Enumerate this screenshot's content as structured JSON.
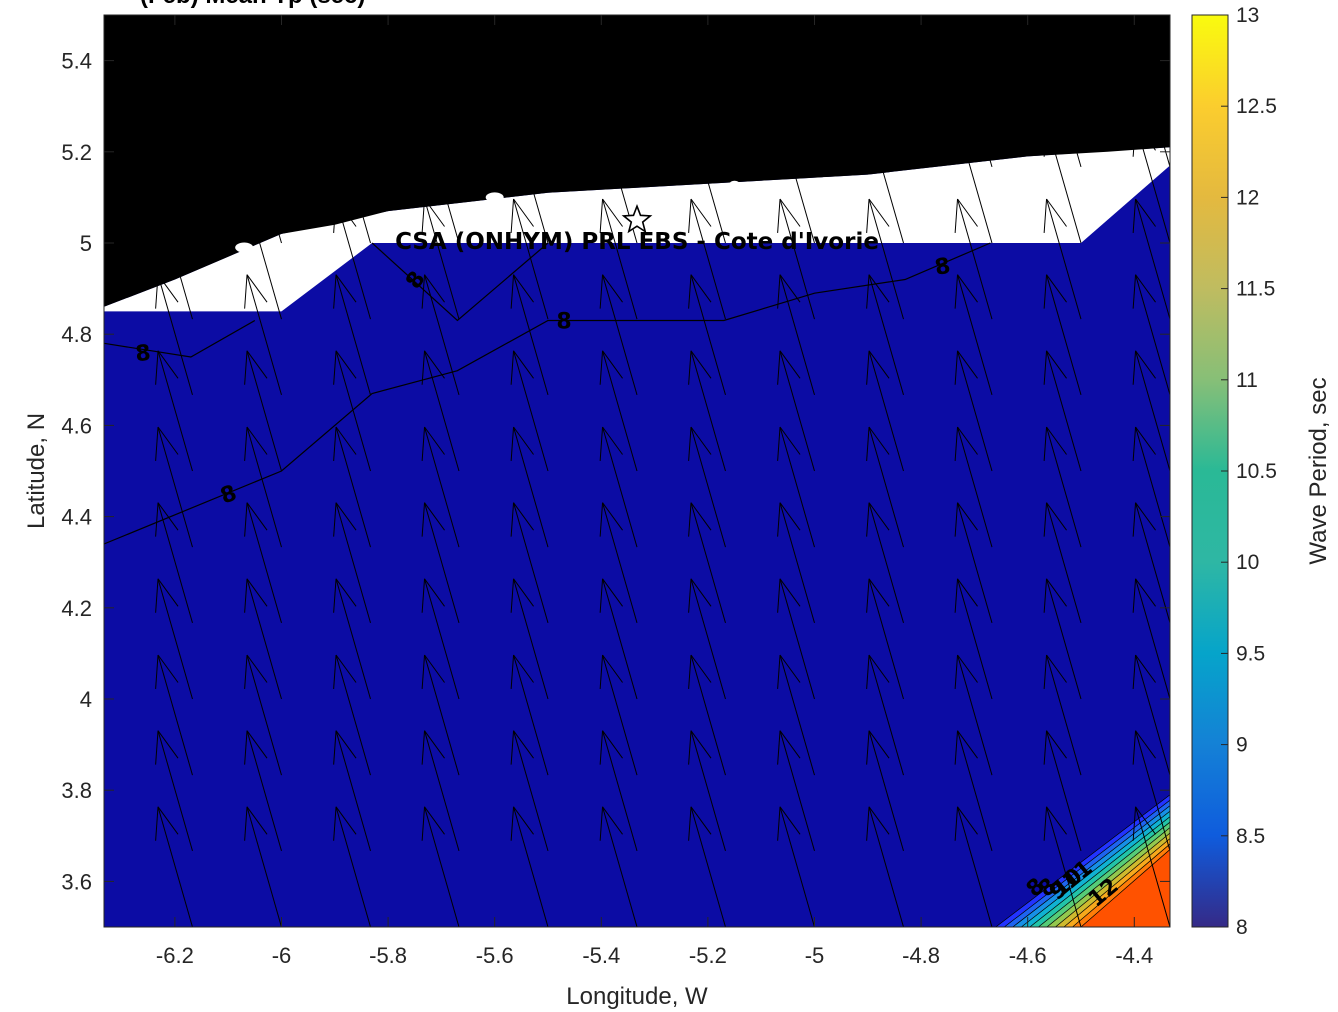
{
  "chart_data": {
    "type": "heatmap",
    "title": "(Feb) Mean Tp (sec)",
    "xlabel": "Longitude, W",
    "ylabel": "Latitude, N",
    "xlim": [
      -6.333,
      -4.333
    ],
    "ylim": [
      3.5,
      5.5
    ],
    "xticks": [
      -6.2,
      -6,
      -5.8,
      -5.6,
      -5.4,
      -5.2,
      -5,
      -4.8,
      -4.6,
      -4.4
    ],
    "xtick_labels": [
      "-6.2",
      "-6",
      "-5.8",
      "-5.6",
      "-5.4",
      "-5.2",
      "-5",
      "-4.8",
      "-4.6",
      "-4.4"
    ],
    "yticks": [
      3.6,
      3.8,
      4,
      4.2,
      4.4,
      4.6,
      4.8,
      5,
      5.2,
      5.4
    ],
    "ytick_labels": [
      "3.6",
      "3.8",
      "4",
      "4.2",
      "4.4",
      "4.6",
      "4.8",
      "5",
      "5.2",
      "5.4"
    ],
    "colorbar": {
      "label": "Wave Period, sec",
      "min": 8,
      "max": 13,
      "ticks": [
        8,
        8.5,
        9,
        9.5,
        10,
        10.5,
        11,
        11.5,
        12,
        12.5,
        13
      ],
      "tick_labels": [
        "8",
        "8.5",
        "9",
        "9.5",
        "10",
        "10.5",
        "11",
        "11.5",
        "12",
        "12.5",
        "13"
      ],
      "colormap": "parula"
    },
    "field": {
      "dominant_value": 8,
      "dominant_color": "#0c0ca4",
      "high_corner_value": 12.4,
      "high_corner_color": "#ff5200",
      "corner_band_colors": [
        "#2233ff",
        "#1e64f0",
        "#1790e6",
        "#10b2d2",
        "#22c4a8",
        "#56cc78",
        "#94c84e",
        "#cfba2e",
        "#f7a91c",
        "#ff7d08"
      ]
    },
    "land_color": "#000000",
    "no_data_color": "#ffffff",
    "contours": [
      {
        "level": 8,
        "points": [
          [
            -6.333,
            4.78
          ],
          [
            -6.17,
            4.75
          ],
          [
            -6.05,
            4.83
          ]
        ]
      },
      {
        "level": 8,
        "points": [
          [
            -6.333,
            4.34
          ],
          [
            -6.0,
            4.5
          ],
          [
            -5.83,
            4.67
          ],
          [
            -5.67,
            4.72
          ],
          [
            -5.5,
            4.83
          ],
          [
            -5.17,
            4.83
          ],
          [
            -5.0,
            4.89
          ],
          [
            -4.83,
            4.92
          ],
          [
            -4.67,
            5.0
          ]
        ]
      },
      {
        "level": 8,
        "points": [
          [
            -5.83,
            5.0
          ],
          [
            -5.67,
            4.83
          ],
          [
            -5.5,
            5.0
          ]
        ]
      }
    ],
    "contour_labels": [
      {
        "text": "8",
        "x": -6.26,
        "y": 4.76,
        "rotate": -5
      },
      {
        "text": "8",
        "x": -6.1,
        "y": 4.45,
        "rotate": -20
      },
      {
        "text": "8",
        "x": -5.75,
        "y": 4.92,
        "rotate": -55
      },
      {
        "text": "8",
        "x": -5.47,
        "y": 4.83,
        "rotate": 0
      },
      {
        "text": "8",
        "x": -4.76,
        "y": 4.95,
        "rotate": -10
      }
    ],
    "corner_contour_labels": [
      "8",
      "8",
      "9",
      "10",
      "11",
      "12"
    ],
    "wave_direction": {
      "description": "mean wave direction arrows",
      "direction_deg_from_north": -16,
      "grid_lon": [
        -6.333,
        -6.167,
        -6.0,
        -5.833,
        -5.667,
        -5.5,
        -5.333,
        -5.167,
        -5.0,
        -4.833,
        -4.667,
        -4.5,
        -4.333
      ],
      "grid_lat": [
        3.5,
        3.667,
        3.833,
        4.0,
        4.167,
        4.333,
        4.5,
        4.667,
        4.833,
        5.0,
        5.167
      ]
    },
    "site": {
      "label": "CSA (ONHYM) PRL EBS  - Cote d'Ivorie",
      "lon": -5.333,
      "lat": 5.05,
      "marker": "star"
    }
  }
}
